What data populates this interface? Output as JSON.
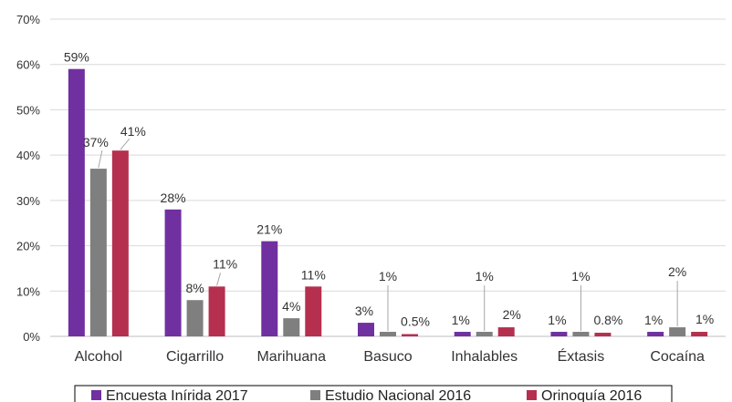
{
  "chart_data": {
    "type": "bar",
    "categories": [
      "Alcohol",
      "Cigarrillo",
      "Marihuana",
      "Basuco",
      "Inhalables",
      "Éxtasis",
      "Cocaína"
    ],
    "series": [
      {
        "name": "Encuesta Inírida 2017",
        "color": "#7030A0",
        "values": [
          59,
          28,
          21,
          3,
          1,
          1,
          1
        ],
        "labels": [
          "59%",
          "28%",
          "21%",
          "3%",
          "1%",
          "1%",
          "1%"
        ]
      },
      {
        "name": "Estudio Nacional 2016",
        "color": "#7F7F7F",
        "values": [
          37,
          8,
          4,
          1,
          1,
          1,
          2
        ],
        "labels": [
          "37%",
          "8%",
          "4%",
          "1%",
          "1%",
          "1%",
          "2%"
        ]
      },
      {
        "name": "Orinoquía 2016",
        "color": "#B5304F",
        "values": [
          41,
          11,
          11,
          0.5,
          2,
          0.8,
          1
        ],
        "labels": [
          "41%",
          "11%",
          "11%",
          "0.5%",
          "2%",
          "0.8%",
          "1%"
        ]
      }
    ],
    "y_ticks": [
      "0%",
      "10%",
      "20%",
      "30%",
      "40%",
      "50%",
      "60%",
      "70%"
    ],
    "ylim": [
      0,
      70
    ],
    "grid": true,
    "legend_position": "bottom"
  }
}
